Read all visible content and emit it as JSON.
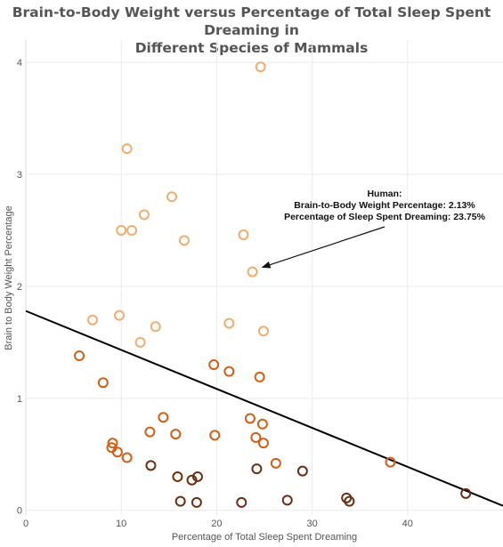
{
  "title_line1": "Brain-to-Body Weight versus Percentage of Total Sleep Spent Dreaming in",
  "title_line2": "Different Species of Mammals",
  "colors": {
    "dark": "#6b2e12",
    "mid": "#d35e16",
    "light": "#f2ad6e",
    "trend": "#000000",
    "grid": "#ebebeb"
  },
  "chart_data": {
    "type": "scatter",
    "title": "Brain-to-Body Weight versus Percentage of Total Sleep Spent Dreaming in Different Species of Mammals",
    "xlabel": "Percentage of Total Sleep Spent Dreaming",
    "ylabel": "Brain to Body Weight Percentage",
    "xlim": [
      0,
      50
    ],
    "ylim": [
      -0.05,
      4.2
    ],
    "xticks": [
      0,
      10,
      20,
      30,
      40
    ],
    "yticks": [
      0,
      1,
      2,
      3,
      4
    ],
    "grid": true,
    "trendline": {
      "x0": 0,
      "y0": 1.78,
      "x1": 50,
      "y1": 0.04
    },
    "points": [
      {
        "x": 24.6,
        "y": 3.96,
        "band": "light"
      },
      {
        "x": 10.6,
        "y": 3.23,
        "band": "light"
      },
      {
        "x": 15.3,
        "y": 2.8,
        "band": "light"
      },
      {
        "x": 12.4,
        "y": 2.64,
        "band": "light"
      },
      {
        "x": 10.0,
        "y": 2.5,
        "band": "light"
      },
      {
        "x": 11.1,
        "y": 2.5,
        "band": "light"
      },
      {
        "x": 22.8,
        "y": 2.46,
        "band": "light"
      },
      {
        "x": 16.6,
        "y": 2.41,
        "band": "light"
      },
      {
        "x": 23.75,
        "y": 2.13,
        "band": "light"
      },
      {
        "x": 9.8,
        "y": 1.74,
        "band": "light"
      },
      {
        "x": 7.0,
        "y": 1.7,
        "band": "light"
      },
      {
        "x": 21.3,
        "y": 1.67,
        "band": "light"
      },
      {
        "x": 13.6,
        "y": 1.64,
        "band": "light"
      },
      {
        "x": 24.9,
        "y": 1.6,
        "band": "light"
      },
      {
        "x": 12.0,
        "y": 1.5,
        "band": "light"
      },
      {
        "x": 5.6,
        "y": 1.38,
        "band": "mid"
      },
      {
        "x": 19.7,
        "y": 1.3,
        "band": "mid"
      },
      {
        "x": 21.3,
        "y": 1.24,
        "band": "mid"
      },
      {
        "x": 24.5,
        "y": 1.19,
        "band": "mid"
      },
      {
        "x": 8.1,
        "y": 1.14,
        "band": "mid"
      },
      {
        "x": 14.4,
        "y": 0.83,
        "band": "mid"
      },
      {
        "x": 23.5,
        "y": 0.82,
        "band": "mid"
      },
      {
        "x": 24.8,
        "y": 0.77,
        "band": "mid"
      },
      {
        "x": 13.0,
        "y": 0.7,
        "band": "mid"
      },
      {
        "x": 15.7,
        "y": 0.68,
        "band": "mid"
      },
      {
        "x": 19.8,
        "y": 0.67,
        "band": "mid"
      },
      {
        "x": 24.1,
        "y": 0.65,
        "band": "mid"
      },
      {
        "x": 9.1,
        "y": 0.6,
        "band": "mid"
      },
      {
        "x": 24.9,
        "y": 0.6,
        "band": "mid"
      },
      {
        "x": 9.0,
        "y": 0.56,
        "band": "mid"
      },
      {
        "x": 9.6,
        "y": 0.52,
        "band": "mid"
      },
      {
        "x": 10.6,
        "y": 0.47,
        "band": "mid"
      },
      {
        "x": 38.2,
        "y": 0.43,
        "band": "mid"
      },
      {
        "x": 26.2,
        "y": 0.42,
        "band": "mid"
      },
      {
        "x": 13.1,
        "y": 0.4,
        "band": "dark"
      },
      {
        "x": 24.2,
        "y": 0.37,
        "band": "dark"
      },
      {
        "x": 29.0,
        "y": 0.35,
        "band": "dark"
      },
      {
        "x": 15.9,
        "y": 0.3,
        "band": "dark"
      },
      {
        "x": 18.0,
        "y": 0.3,
        "band": "dark"
      },
      {
        "x": 17.4,
        "y": 0.27,
        "band": "dark"
      },
      {
        "x": 46.1,
        "y": 0.15,
        "band": "dark"
      },
      {
        "x": 33.6,
        "y": 0.11,
        "band": "dark"
      },
      {
        "x": 27.4,
        "y": 0.09,
        "band": "dark"
      },
      {
        "x": 16.2,
        "y": 0.08,
        "band": "dark"
      },
      {
        "x": 33.9,
        "y": 0.08,
        "band": "dark"
      },
      {
        "x": 17.9,
        "y": 0.07,
        "band": "dark"
      },
      {
        "x": 22.6,
        "y": 0.07,
        "band": "dark"
      }
    ],
    "annotation": {
      "lines": [
        "Human:",
        "Brain-to-Body Weight Percentage: 2.13%",
        "Percentage of Sleep Spent Dreaming: 23.75%"
      ],
      "target": {
        "x": 23.75,
        "y": 2.13
      }
    }
  }
}
